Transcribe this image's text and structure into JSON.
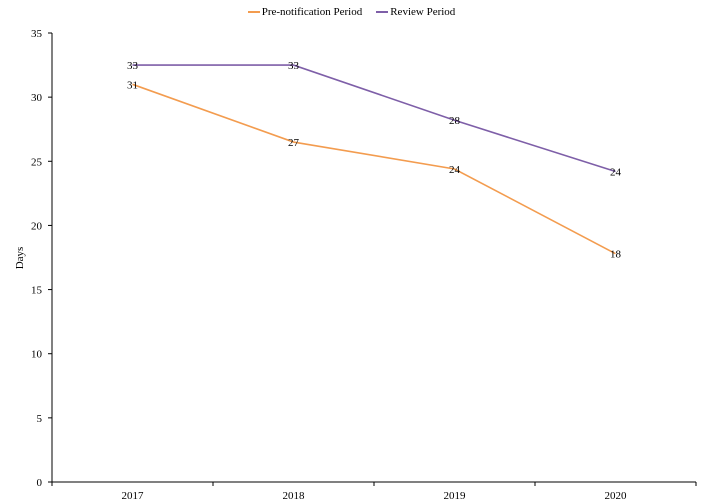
{
  "chart_data": {
    "type": "line",
    "categories": [
      "2017",
      "2018",
      "2019",
      "2020"
    ],
    "series": [
      {
        "name": "Pre-notification Period",
        "color": "#F39C4F",
        "values": [
          31,
          26.5,
          24.4,
          17.8
        ],
        "labels": [
          "31",
          "27",
          "24",
          "18"
        ]
      },
      {
        "name": "Review Period",
        "color": "#7E5FA8",
        "values": [
          32.5,
          32.5,
          28.2,
          24.2
        ],
        "labels": [
          "33",
          "33",
          "28",
          "24"
        ]
      }
    ],
    "ylabel": "Days",
    "xlabel": "",
    "ylim": [
      0,
      35
    ],
    "yticks": [
      "0",
      "5",
      "10",
      "15",
      "20",
      "25",
      "30",
      "35"
    ],
    "grid": false,
    "legend": "top-center"
  }
}
